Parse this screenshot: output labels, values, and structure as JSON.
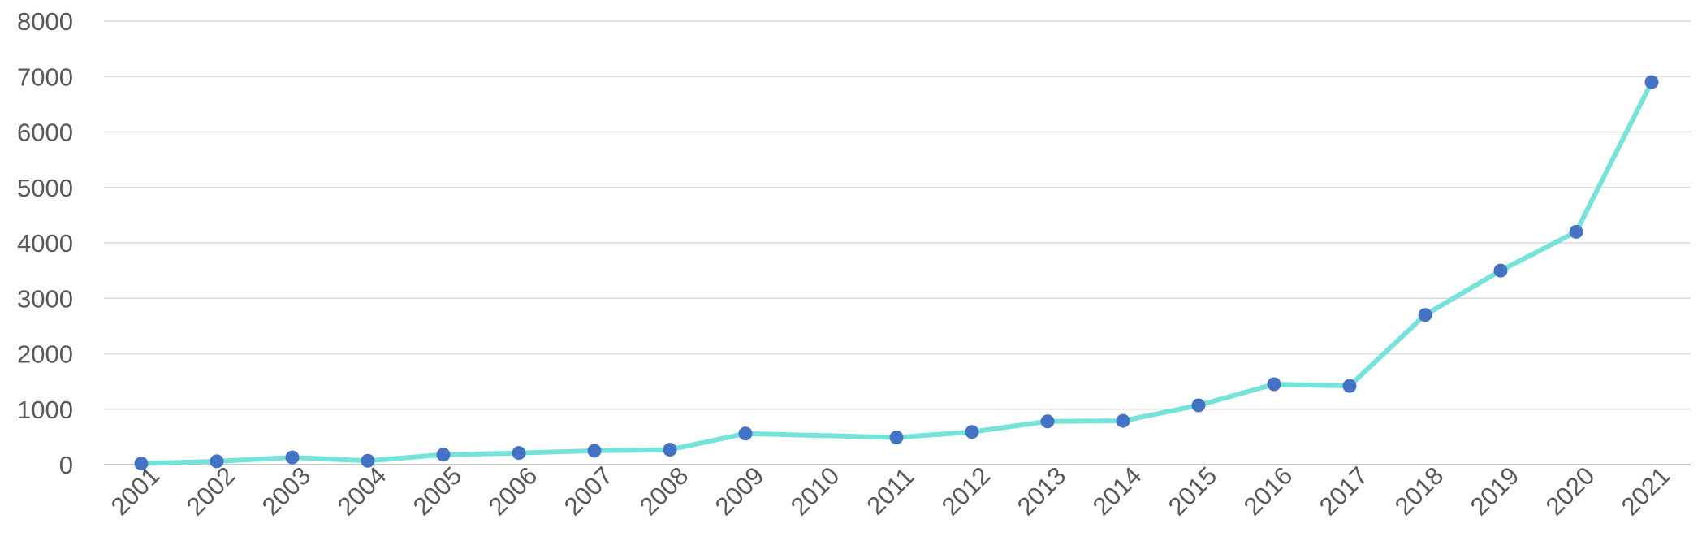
{
  "chart_data": {
    "type": "line",
    "title": "",
    "xlabel": "",
    "ylabel": "",
    "x": [
      "2001",
      "2002",
      "2003",
      "2004",
      "2005",
      "2006",
      "2007",
      "2008",
      "2009",
      "2011",
      "2012",
      "2013",
      "2014",
      "2015",
      "2016",
      "2017",
      "2018",
      "2019",
      "2020",
      "2021"
    ],
    "x_tick_labels": [
      "2001",
      "2002",
      "2003",
      "2004",
      "2005",
      "2006",
      "2007",
      "2008",
      "2009",
      "2010",
      "2011",
      "2012",
      "2013",
      "2014",
      "2015",
      "2016",
      "2017",
      "2018",
      "2019",
      "2020",
      "2021"
    ],
    "series": [
      {
        "values": [
          20,
          60,
          130,
          70,
          180,
          210,
          250,
          270,
          560,
          490,
          590,
          780,
          790,
          1070,
          1450,
          1420,
          2700,
          3500,
          4200,
          6900
        ]
      }
    ],
    "ylim": [
      0,
      8000
    ],
    "y_ticks": [
      0,
      1000,
      2000,
      3000,
      4000,
      5000,
      6000,
      7000,
      8000
    ],
    "grid": true,
    "legend": "none",
    "colors": {
      "line": "#76e3da",
      "marker": "#4472c4",
      "grid": "#d9d9d9",
      "text": "#595959"
    }
  }
}
